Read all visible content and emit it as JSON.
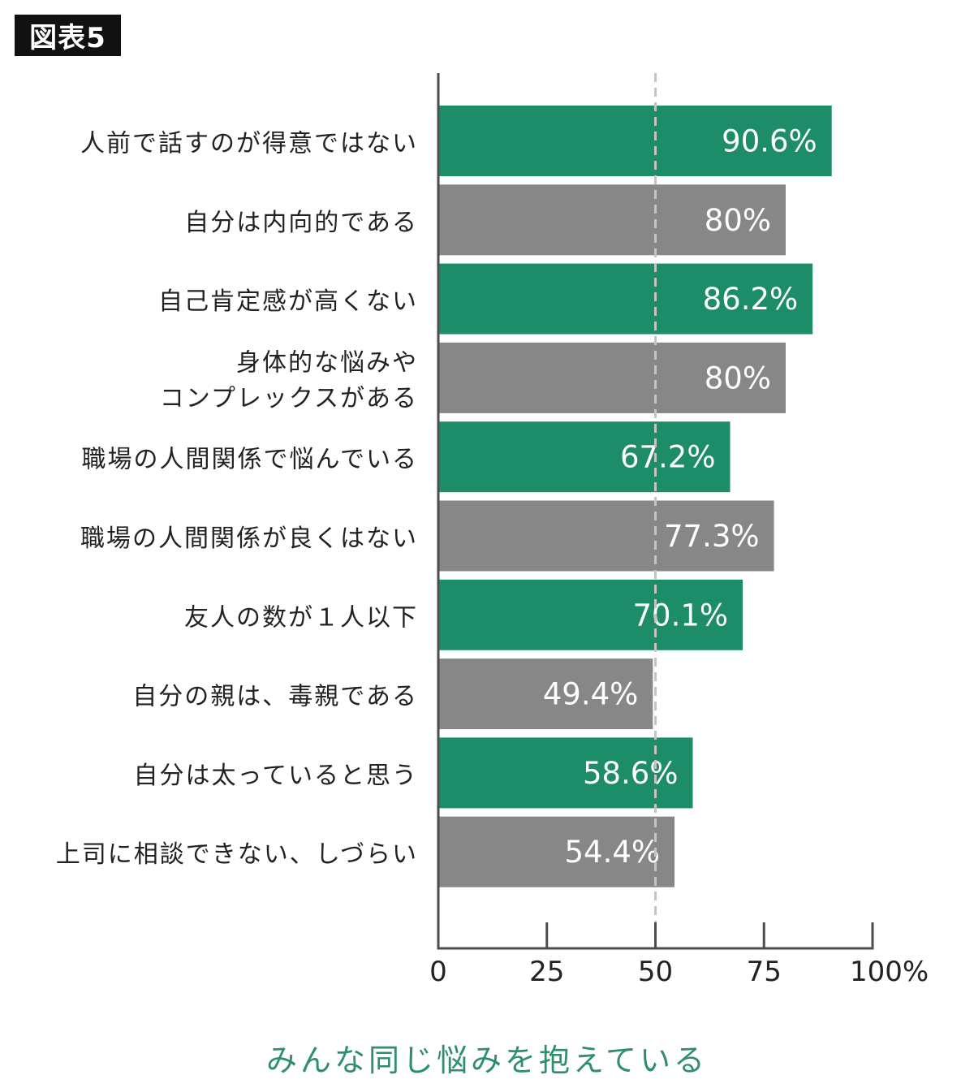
{
  "badge": "図表5",
  "caption": "みんな同じ悩みを抱えている",
  "colors": {
    "green": "#1d8c69",
    "gray": "#878787",
    "axis": "#4d4d4d",
    "ref_line": "#c4c4c4",
    "caption": "#2f8f6a"
  },
  "chart_data": {
    "type": "bar",
    "orientation": "horizontal",
    "categories": [
      [
        "人前で話すのが得意ではない"
      ],
      [
        "自分は内向的である"
      ],
      [
        "自己肯定感が高くない"
      ],
      [
        "身体的な悩みや",
        "コンプレックスがある"
      ],
      [
        "職場の人間関係で悩んでいる"
      ],
      [
        "職場の人間関係が良くはない"
      ],
      [
        "友人の数が１人以下"
      ],
      [
        "自分の親は、毒親である"
      ],
      [
        "自分は太っていると思う"
      ],
      [
        "上司に相談できない、しづらい"
      ]
    ],
    "values": [
      90.6,
      80,
      86.2,
      80,
      67.2,
      77.3,
      70.1,
      49.4,
      58.6,
      54.4
    ],
    "value_labels": [
      "90.6%",
      "80%",
      "86.2%",
      "80%",
      "67.2%",
      "77.3%",
      "70.1%",
      "49.4%",
      "58.6%",
      "54.4%"
    ],
    "bar_colors": [
      "green",
      "gray",
      "green",
      "gray",
      "green",
      "gray",
      "green",
      "gray",
      "green",
      "gray"
    ],
    "xlim": [
      0,
      100
    ],
    "xticks": [
      0,
      25,
      50,
      75,
      100
    ],
    "xtick_labels": [
      "0",
      "25",
      "50",
      "75",
      "100%"
    ],
    "reference_line": 50,
    "grid": false
  }
}
